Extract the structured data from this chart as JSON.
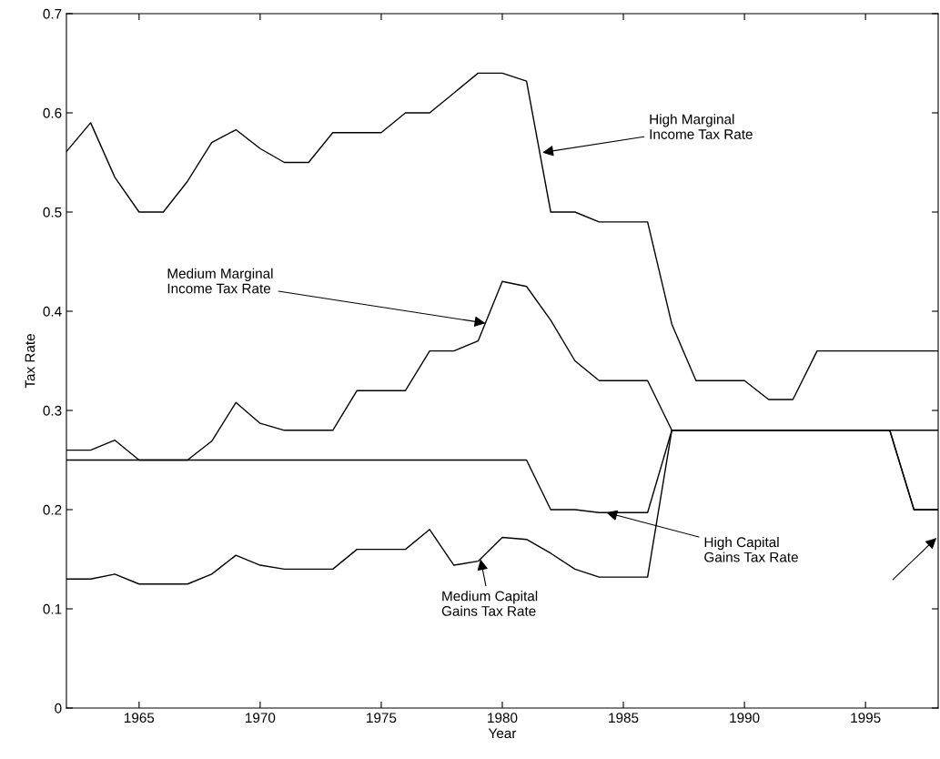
{
  "chart_data": {
    "type": "line",
    "xlabel": "Year",
    "ylabel": "Tax Rate",
    "x": [
      1962,
      1963,
      1964,
      1965,
      1966,
      1967,
      1968,
      1969,
      1970,
      1971,
      1972,
      1973,
      1974,
      1975,
      1976,
      1977,
      1978,
      1979,
      1980,
      1981,
      1982,
      1983,
      1984,
      1985,
      1986,
      1987,
      1988,
      1989,
      1990,
      1991,
      1992,
      1993,
      1994,
      1995,
      1996,
      1997,
      1998
    ],
    "series": [
      {
        "color": "#000000",
        "values": [
          0.561,
          0.59,
          0.535,
          0.5,
          0.5,
          0.531,
          0.57,
          0.583,
          0.564,
          0.55,
          0.55,
          0.58,
          0.58,
          0.58,
          0.6,
          0.6,
          0.62,
          0.64,
          0.64,
          0.632,
          0.5,
          0.5,
          0.49,
          0.49,
          0.49,
          0.387,
          0.33,
          0.33,
          0.33,
          0.311,
          0.311,
          0.36,
          0.36,
          0.36,
          0.36,
          0.36,
          0.36
        ]
      },
      {
        "color": "#000000",
        "values": [
          0.26,
          0.26,
          0.27,
          0.25,
          0.25,
          0.25,
          0.269,
          0.308,
          0.287,
          0.28,
          0.28,
          0.28,
          0.32,
          0.32,
          0.32,
          0.36,
          0.36,
          0.37,
          0.43,
          0.425,
          0.391,
          0.35,
          0.33,
          0.33,
          0.33,
          0.28,
          0.28,
          0.28,
          0.28,
          0.28,
          0.28,
          0.28,
          0.28,
          0.28,
          0.28,
          0.28,
          0.28
        ]
      },
      {
        "color": "#000000",
        "values": [
          0.25,
          0.25,
          0.25,
          0.25,
          0.25,
          0.25,
          0.25,
          0.25,
          0.25,
          0.25,
          0.25,
          0.25,
          0.25,
          0.25,
          0.25,
          0.25,
          0.25,
          0.25,
          0.25,
          0.25,
          0.2,
          0.2,
          0.197,
          0.197,
          0.197,
          0.28,
          0.28,
          0.28,
          0.28,
          0.28,
          0.28,
          0.28,
          0.28,
          0.28,
          0.28,
          0.2,
          0.2
        ]
      },
      {
        "color": "#000000",
        "values": [
          0.13,
          0.13,
          0.135,
          0.125,
          0.125,
          0.125,
          0.135,
          0.154,
          0.144,
          0.14,
          0.14,
          0.14,
          0.16,
          0.16,
          0.16,
          0.18,
          0.144,
          0.148,
          0.172,
          0.17,
          0.156,
          0.14,
          0.132,
          0.132,
          0.132,
          0.28,
          0.28,
          0.28,
          0.28,
          0.28,
          0.28,
          0.28,
          0.28,
          0.28,
          0.28,
          0.2,
          0.2
        ]
      }
    ],
    "xlim": [
      1962,
      1998
    ],
    "xticks": [
      1965,
      1970,
      1975,
      1980,
      1985,
      1990,
      1995
    ],
    "ylim": [
      0,
      0.7
    ],
    "yticks": [
      0,
      0.1,
      0.2,
      0.3,
      0.4,
      0.5,
      0.6,
      0.7
    ],
    "grid": false,
    "annotations": [
      {
        "text": "High Marginal\nIncome Tax Rate",
        "x": 1981.66,
        "y": 0.56
      },
      {
        "text": "Medium Marginal\nIncome Tax Rate",
        "x": 1979.3,
        "y": 0.388
      },
      {
        "text": "High Capital\nGains Tax Rate",
        "x": 1984.3,
        "y": 0.197
      },
      {
        "text": "Medium Capital\nGains Tax Rate",
        "x": 1979.1,
        "y": 0.15
      }
    ]
  }
}
